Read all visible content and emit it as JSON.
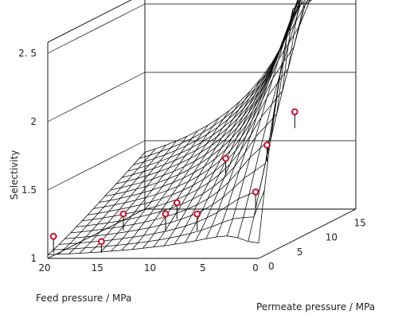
{
  "chart_data": {
    "type": "surface",
    "xlabel": "Feed pressure / MPa",
    "ylabel": "Permeate pressure / MPa",
    "zlabel": "Selectivity",
    "xlim": [
      0,
      20
    ],
    "ylim": [
      0,
      17
    ],
    "zlim": [
      1,
      2.5
    ],
    "x_ticks": [
      "20",
      "15",
      "10",
      "5",
      "0"
    ],
    "y_ticks": [
      "0",
      "5",
      "10",
      "15"
    ],
    "z_ticks": [
      "1",
      "1.5",
      "2",
      "2. 5"
    ],
    "grid": true,
    "points": [
      {
        "x": 20,
        "y": 1,
        "z": 1.14
      },
      {
        "x": 16,
        "y": 2,
        "z": 1.08
      },
      {
        "x": 15,
        "y": 4,
        "z": 1.24
      },
      {
        "x": 11,
        "y": 4,
        "z": 1.24
      },
      {
        "x": 11,
        "y": 6,
        "z": 1.28
      },
      {
        "x": 8,
        "y": 4,
        "z": 1.24
      },
      {
        "x": 8,
        "y": 9,
        "z": 1.54
      },
      {
        "x": 3,
        "y": 5,
        "z": 1.38
      },
      {
        "x": 3,
        "y": 7,
        "z": 1.68
      },
      {
        "x": 2,
        "y": 10,
        "z": 1.86
      }
    ]
  }
}
